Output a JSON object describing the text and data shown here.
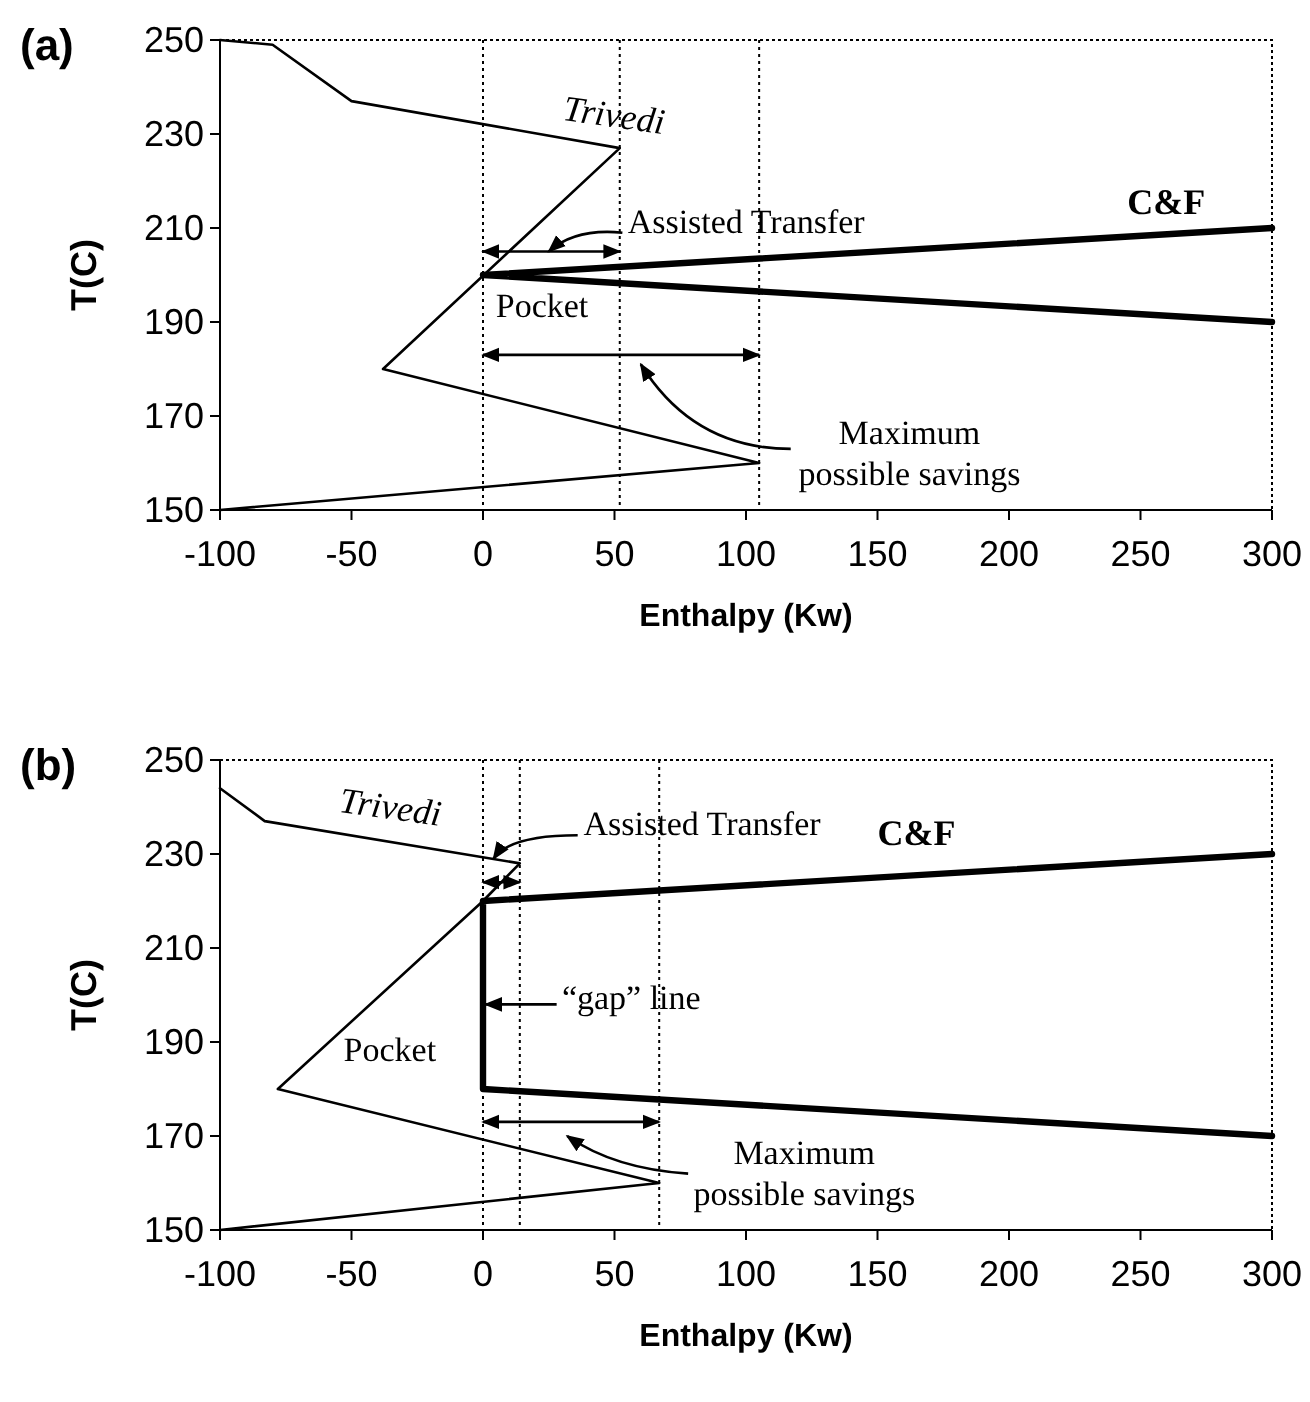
{
  "chart_data": [
    {
      "type": "line",
      "title": "(a)",
      "xlabel": "Enthalpy (Kw)",
      "ylabel": "T(C)",
      "xlim": [
        -100,
        300
      ],
      "ylim": [
        150,
        250
      ],
      "xticks": [
        -100,
        -50,
        0,
        50,
        100,
        150,
        200,
        250,
        300
      ],
      "yticks": [
        150,
        170,
        190,
        210,
        230,
        250
      ],
      "grid": false,
      "legend": false,
      "marker": "none",
      "series": [
        {
          "name": "Trivedi",
          "color": "#000000",
          "x": [
            -100,
            -80,
            -50,
            52,
            -38,
            105,
            -100
          ],
          "values": [
            250,
            249,
            237,
            227,
            180,
            160,
            150
          ]
        },
        {
          "name": "C&F",
          "color": "#000000",
          "x": [
            300,
            0,
            300
          ],
          "values": [
            210,
            200,
            190
          ]
        }
      ],
      "ref_lines": [
        {
          "axis": "x",
          "value": 0,
          "line_style": "dotted"
        },
        {
          "axis": "x",
          "value": 52,
          "line_style": "dotted"
        },
        {
          "axis": "x",
          "value": 105,
          "line_style": "dotted"
        }
      ],
      "annotations": [
        "Assisted Transfer",
        {
          "text": "Pocket",
          "x": 52,
          "y": 183
        },
        "Maximum possible savings"
      ]
    },
    {
      "type": "line",
      "title": "(b)",
      "xlabel": "Enthalpy (Kw)",
      "ylabel": "T(C)",
      "xlim": [
        -100,
        300
      ],
      "ylim": [
        150,
        250
      ],
      "xticks": [
        -100,
        -50,
        0,
        50,
        100,
        150,
        200,
        250,
        300
      ],
      "yticks": [
        150,
        170,
        190,
        210,
        230,
        250
      ],
      "grid": false,
      "legend": false,
      "marker": "none",
      "series": [
        {
          "name": "Trivedi",
          "color": "#000000",
          "x": [
            -100,
            -83,
            14,
            0,
            -78,
            67,
            -100
          ],
          "values": [
            244,
            237,
            228,
            220,
            180,
            160,
            150
          ]
        },
        {
          "name": "C&F",
          "color": "#000000",
          "x": [
            300,
            0,
            0,
            300
          ],
          "values": [
            230,
            220,
            180,
            170
          ]
        }
      ],
      "ref_lines": [
        {
          "axis": "x",
          "value": 0,
          "line_style": "dotted"
        },
        {
          "axis": "x",
          "value": 14,
          "line_style": "dotted"
        },
        {
          "axis": "x",
          "value": 67,
          "line_style": "dotted"
        }
      ],
      "annotations": [
        {
          "text": "Assisted Transfer",
          "x": 4,
          "y": 229
        },
        "“gap” line",
        "Pocket",
        "Maximum possible savings"
      ]
    }
  ]
}
